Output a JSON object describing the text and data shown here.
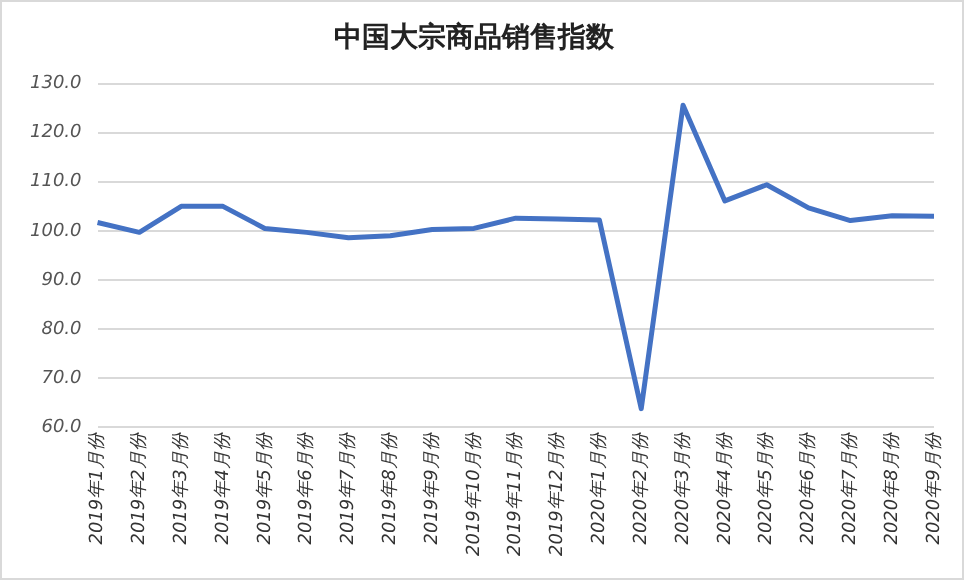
{
  "chart_data": {
    "type": "line",
    "title": "中国大宗商品销售指数",
    "categories": [
      "2019年1月份",
      "2019年2月份",
      "2019年3月份",
      "2019年4月份",
      "2019年5月份",
      "2019年6月份",
      "2019年7月份",
      "2019年8月份",
      "2019年9月份",
      "2019年10月份",
      "2019年11月份",
      "2019年12月份",
      "2020年1月份",
      "2020年2月份",
      "2020年3月份",
      "2020年4月份",
      "2020年5月份",
      "2020年6月份",
      "2020年7月份",
      "2020年8月份",
      "2020年9月份"
    ],
    "series": [
      {
        "color": "#4472c4",
        "values": [
          101.7,
          99.7,
          105,
          105,
          100.5,
          99.7,
          98.6,
          99,
          100.3,
          100.5,
          102.6,
          102.4,
          102.2,
          63.8,
          125.6,
          106.1,
          109.4,
          104.7,
          102.1,
          103.1,
          103
        ]
      }
    ],
    "ylim": [
      60,
      130
    ],
    "yticks": [
      {
        "value": 60,
        "label": "60.0"
      },
      {
        "value": 70,
        "label": "70.0"
      },
      {
        "value": 80,
        "label": "80.0"
      },
      {
        "value": 90,
        "label": "90.0"
      },
      {
        "value": 100,
        "label": "100.0"
      },
      {
        "value": 110,
        "label": "110.0"
      },
      {
        "value": 120,
        "label": "120.0"
      },
      {
        "value": 130,
        "label": "130.0"
      }
    ],
    "grid": "y",
    "legend": false,
    "marker": "none",
    "line_style": "solid"
  }
}
